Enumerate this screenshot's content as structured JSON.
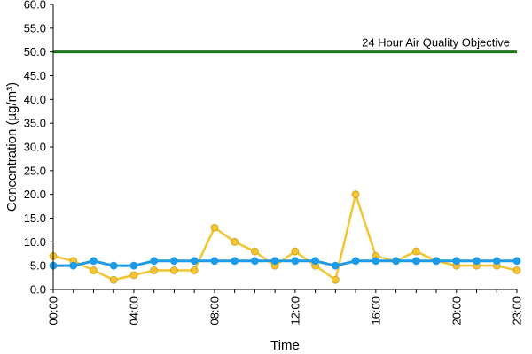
{
  "chart_data": {
    "type": "line",
    "title": "",
    "xlabel": "Time",
    "ylabel": "Concentration (µg/m³)",
    "ylim": [
      0,
      60
    ],
    "yticks": [
      "0.0",
      "5.0",
      "10.0",
      "15.0",
      "20.0",
      "25.0",
      "30.0",
      "35.0",
      "40.0",
      "45.0",
      "50.0",
      "55.0",
      "60.0"
    ],
    "x": [
      "00:00",
      "01:00",
      "02:00",
      "03:00",
      "04:00",
      "05:00",
      "06:00",
      "07:00",
      "08:00",
      "09:00",
      "10:00",
      "11:00",
      "12:00",
      "13:00",
      "14:00",
      "15:00",
      "16:00",
      "17:00",
      "18:00",
      "19:00",
      "20:00",
      "21:00",
      "22:00",
      "23:00"
    ],
    "xtick_labels": [
      "00:00",
      "04:00",
      "08:00",
      "12:00",
      "16:00",
      "20:00",
      "23:00"
    ],
    "grid": false,
    "legend": "none",
    "series": [
      {
        "color": "#f5c431",
        "values": [
          7,
          6,
          4,
          2,
          3,
          4,
          4,
          4,
          13,
          10,
          8,
          5,
          8,
          5,
          2,
          20,
          7,
          6,
          8,
          6,
          5,
          5,
          5,
          4
        ]
      },
      {
        "color": "#1e9be6",
        "values": [
          5,
          5,
          6,
          5,
          5,
          6,
          6,
          6,
          6,
          6,
          6,
          6,
          6,
          6,
          5,
          6,
          6,
          6,
          6,
          6,
          6,
          6,
          6,
          6
        ]
      }
    ],
    "reference_line": {
      "value": 50,
      "label": "24 Hour Air Quality Objective",
      "color": "#1a7a1a"
    }
  }
}
